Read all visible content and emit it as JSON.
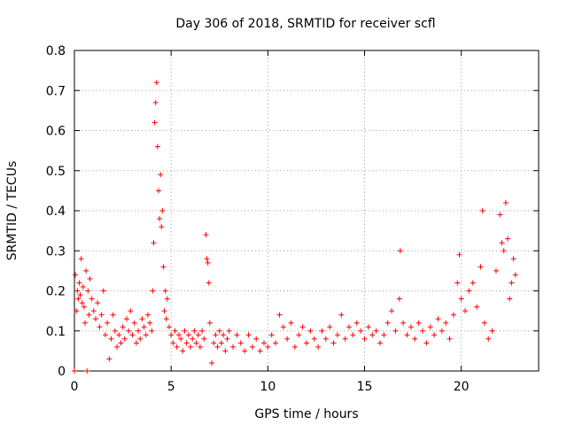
{
  "chart_data": {
    "type": "scatter",
    "title": "Day 306 of 2018, SRMTID for receiver scfl",
    "xlabel": "GPS time / hours",
    "ylabel": "SRMTID / TECUs",
    "xlim": [
      0,
      24
    ],
    "ylim": [
      0,
      0.8
    ],
    "xticks": [
      0,
      5,
      10,
      15,
      20
    ],
    "yticks": [
      0,
      0.1,
      0.2,
      0.3,
      0.4,
      0.5,
      0.6,
      0.7,
      0.8
    ],
    "xtick_labels": [
      "0",
      "5",
      "10",
      "15",
      "20"
    ],
    "ytick_labels": [
      "0",
      "0.1",
      "0.2",
      "0.3",
      "0.4",
      "0.5",
      "0.6",
      "0.7",
      "0.8"
    ],
    "grid": true,
    "marker": "+",
    "color": "#ff0000",
    "series": [
      {
        "name": "SRMTID",
        "points": [
          [
            0.0,
            0.0
          ],
          [
            0.05,
            0.24
          ],
          [
            0.1,
            0.15
          ],
          [
            0.15,
            0.2
          ],
          [
            0.2,
            0.18
          ],
          [
            0.25,
            0.22
          ],
          [
            0.3,
            0.19
          ],
          [
            0.35,
            0.28
          ],
          [
            0.4,
            0.17
          ],
          [
            0.45,
            0.21
          ],
          [
            0.5,
            0.16
          ],
          [
            0.55,
            0.12
          ],
          [
            0.6,
            0.25
          ],
          [
            0.65,
            0.0
          ],
          [
            0.7,
            0.2
          ],
          [
            0.75,
            0.14
          ],
          [
            0.8,
            0.23
          ],
          [
            0.9,
            0.18
          ],
          [
            1.0,
            0.15
          ],
          [
            1.1,
            0.13
          ],
          [
            1.2,
            0.17
          ],
          [
            1.3,
            0.11
          ],
          [
            1.4,
            0.14
          ],
          [
            1.5,
            0.2
          ],
          [
            1.6,
            0.09
          ],
          [
            1.7,
            0.12
          ],
          [
            1.8,
            0.03
          ],
          [
            1.9,
            0.08
          ],
          [
            2.0,
            0.14
          ],
          [
            2.1,
            0.1
          ],
          [
            2.2,
            0.06
          ],
          [
            2.3,
            0.09
          ],
          [
            2.4,
            0.07
          ],
          [
            2.5,
            0.11
          ],
          [
            2.6,
            0.08
          ],
          [
            2.7,
            0.13
          ],
          [
            2.8,
            0.1
          ],
          [
            2.9,
            0.15
          ],
          [
            3.0,
            0.09
          ],
          [
            3.1,
            0.12
          ],
          [
            3.2,
            0.07
          ],
          [
            3.3,
            0.1
          ],
          [
            3.4,
            0.08
          ],
          [
            3.5,
            0.13
          ],
          [
            3.6,
            0.11
          ],
          [
            3.7,
            0.09
          ],
          [
            3.8,
            0.14
          ],
          [
            3.9,
            0.12
          ],
          [
            4.0,
            0.1
          ],
          [
            4.05,
            0.2
          ],
          [
            4.1,
            0.32
          ],
          [
            4.15,
            0.62
          ],
          [
            4.2,
            0.67
          ],
          [
            4.25,
            0.72
          ],
          [
            4.3,
            0.56
          ],
          [
            4.35,
            0.45
          ],
          [
            4.4,
            0.38
          ],
          [
            4.45,
            0.49
          ],
          [
            4.5,
            0.36
          ],
          [
            4.55,
            0.4
          ],
          [
            4.6,
            0.26
          ],
          [
            4.65,
            0.15
          ],
          [
            4.7,
            0.2
          ],
          [
            4.75,
            0.13
          ],
          [
            4.8,
            0.18
          ],
          [
            4.9,
            0.11
          ],
          [
            5.0,
            0.09
          ],
          [
            5.1,
            0.07
          ],
          [
            5.2,
            0.1
          ],
          [
            5.3,
            0.06
          ],
          [
            5.4,
            0.09
          ],
          [
            5.5,
            0.08
          ],
          [
            5.6,
            0.05
          ],
          [
            5.7,
            0.1
          ],
          [
            5.8,
            0.07
          ],
          [
            5.9,
            0.09
          ],
          [
            6.0,
            0.06
          ],
          [
            6.1,
            0.08
          ],
          [
            6.2,
            0.1
          ],
          [
            6.3,
            0.07
          ],
          [
            6.4,
            0.09
          ],
          [
            6.5,
            0.06
          ],
          [
            6.6,
            0.1
          ],
          [
            6.7,
            0.08
          ],
          [
            6.8,
            0.34
          ],
          [
            6.85,
            0.28
          ],
          [
            6.9,
            0.27
          ],
          [
            6.95,
            0.22
          ],
          [
            7.0,
            0.12
          ],
          [
            7.1,
            0.02
          ],
          [
            7.2,
            0.07
          ],
          [
            7.3,
            0.09
          ],
          [
            7.4,
            0.06
          ],
          [
            7.5,
            0.1
          ],
          [
            7.6,
            0.07
          ],
          [
            7.7,
            0.09
          ],
          [
            7.8,
            0.05
          ],
          [
            7.9,
            0.08
          ],
          [
            8.0,
            0.1
          ],
          [
            8.2,
            0.06
          ],
          [
            8.4,
            0.09
          ],
          [
            8.6,
            0.07
          ],
          [
            8.8,
            0.05
          ],
          [
            9.0,
            0.09
          ],
          [
            9.2,
            0.06
          ],
          [
            9.4,
            0.08
          ],
          [
            9.6,
            0.05
          ],
          [
            9.8,
            0.07
          ],
          [
            10.0,
            0.06
          ],
          [
            10.2,
            0.09
          ],
          [
            10.4,
            0.07
          ],
          [
            10.6,
            0.14
          ],
          [
            10.8,
            0.11
          ],
          [
            11.0,
            0.08
          ],
          [
            11.2,
            0.12
          ],
          [
            11.4,
            0.06
          ],
          [
            11.6,
            0.09
          ],
          [
            11.8,
            0.11
          ],
          [
            12.0,
            0.07
          ],
          [
            12.2,
            0.1
          ],
          [
            12.4,
            0.08
          ],
          [
            12.6,
            0.06
          ],
          [
            12.8,
            0.1
          ],
          [
            13.0,
            0.08
          ],
          [
            13.2,
            0.11
          ],
          [
            13.4,
            0.07
          ],
          [
            13.6,
            0.09
          ],
          [
            13.8,
            0.14
          ],
          [
            14.0,
            0.08
          ],
          [
            14.2,
            0.11
          ],
          [
            14.4,
            0.09
          ],
          [
            14.6,
            0.12
          ],
          [
            14.8,
            0.1
          ],
          [
            15.0,
            0.08
          ],
          [
            15.2,
            0.11
          ],
          [
            15.4,
            0.09
          ],
          [
            15.6,
            0.1
          ],
          [
            15.8,
            0.07
          ],
          [
            16.0,
            0.09
          ],
          [
            16.2,
            0.12
          ],
          [
            16.4,
            0.15
          ],
          [
            16.6,
            0.1
          ],
          [
            16.8,
            0.18
          ],
          [
            16.85,
            0.3
          ],
          [
            17.0,
            0.12
          ],
          [
            17.2,
            0.09
          ],
          [
            17.4,
            0.11
          ],
          [
            17.6,
            0.08
          ],
          [
            17.8,
            0.12
          ],
          [
            18.0,
            0.1
          ],
          [
            18.2,
            0.07
          ],
          [
            18.4,
            0.11
          ],
          [
            18.6,
            0.09
          ],
          [
            18.8,
            0.13
          ],
          [
            19.0,
            0.1
          ],
          [
            19.2,
            0.12
          ],
          [
            19.4,
            0.08
          ],
          [
            19.6,
            0.14
          ],
          [
            19.8,
            0.22
          ],
          [
            19.9,
            0.29
          ],
          [
            20.0,
            0.18
          ],
          [
            20.2,
            0.15
          ],
          [
            20.4,
            0.2
          ],
          [
            20.6,
            0.22
          ],
          [
            20.8,
            0.16
          ],
          [
            21.0,
            0.26
          ],
          [
            21.1,
            0.4
          ],
          [
            21.2,
            0.12
          ],
          [
            21.4,
            0.08
          ],
          [
            21.6,
            0.1
          ],
          [
            21.8,
            0.25
          ],
          [
            22.0,
            0.39
          ],
          [
            22.1,
            0.32
          ],
          [
            22.2,
            0.3
          ],
          [
            22.3,
            0.42
          ],
          [
            22.4,
            0.33
          ],
          [
            22.5,
            0.18
          ],
          [
            22.6,
            0.22
          ],
          [
            22.7,
            0.28
          ],
          [
            22.8,
            0.24
          ]
        ]
      }
    ]
  }
}
